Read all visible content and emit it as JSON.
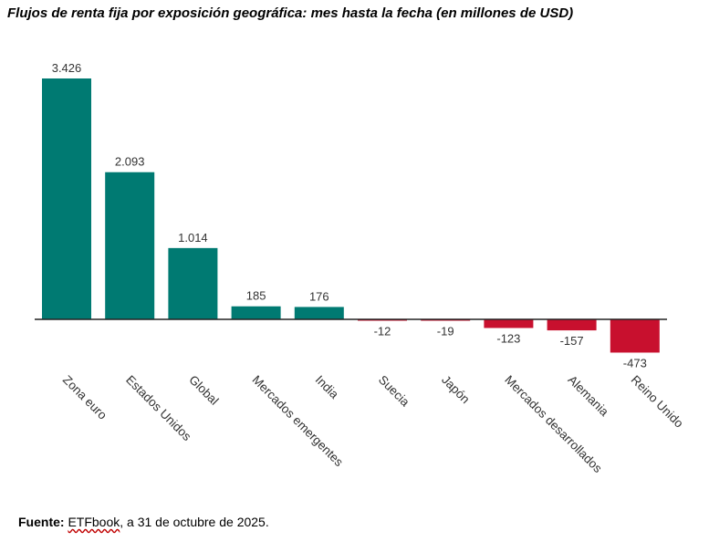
{
  "title": "Flujos de renta fija por exposición geográfica: mes hasta la fecha (en millones de USD)",
  "source": {
    "label": "Fuente:",
    "name": "ETFbook",
    "rest": ", a 31 de octubre de 2025."
  },
  "colors": {
    "positive": "#007a72",
    "negative": "#c8102e",
    "axis": "#222222",
    "text": "#333333"
  },
  "chart_data": {
    "type": "bar",
    "title": "Flujos de renta fija por exposición geográfica: mes hasta la fecha (en millones de USD)",
    "xlabel": "",
    "ylabel": "",
    "ylim": [
      -473,
      3426
    ],
    "grid": false,
    "categories": [
      "Zona euro",
      "Estados Unidos",
      "Global",
      "Mercados emergentes",
      "India",
      "Suecia",
      "Japón",
      "Mercados desarrollados",
      "Alemania",
      "Reino Unido"
    ],
    "values": [
      3426,
      2093,
      1014,
      185,
      176,
      -12,
      -19,
      -123,
      -157,
      -473
    ],
    "value_labels": [
      "3.426",
      "2.093",
      "1.014",
      "185",
      "176",
      "-12",
      "-19",
      "-123",
      "-157",
      "-473"
    ]
  }
}
